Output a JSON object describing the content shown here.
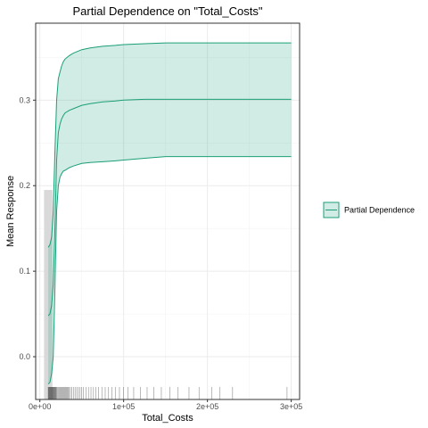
{
  "chart_data": {
    "type": "area",
    "title": "Partial Dependence on \"Total_Costs\"",
    "xlabel": "Total_Costs",
    "ylabel": "Mean Response",
    "xlim": [
      -5000,
      310000
    ],
    "ylim": [
      -0.05,
      0.39
    ],
    "x_ticks": [
      {
        "value": 0,
        "label": "0e+00"
      },
      {
        "value": 100000,
        "label": "1e+05"
      },
      {
        "value": 200000,
        "label": "2e+05"
      },
      {
        "value": 300000,
        "label": "3e+05"
      }
    ],
    "y_ticks": [
      {
        "value": 0.0,
        "label": "0.0"
      },
      {
        "value": 0.1,
        "label": "0.1"
      },
      {
        "value": 0.2,
        "label": "0.2"
      },
      {
        "value": 0.3,
        "label": "0.3"
      }
    ],
    "grid": true,
    "legend_position": "right",
    "series": [
      {
        "name": "Partial Dependence",
        "color": "#1b9e77",
        "fill": "#1b9e77",
        "fill_opacity": 0.2,
        "x": [
          10000,
          12000,
          14000,
          16000,
          18000,
          20000,
          22000,
          24000,
          26000,
          28000,
          30000,
          35000,
          40000,
          50000,
          60000,
          75000,
          90000,
          100000,
          125000,
          150000,
          200000,
          250000,
          300000
        ],
        "mean": [
          0.048,
          0.05,
          0.06,
          0.085,
          0.15,
          0.23,
          0.262,
          0.272,
          0.278,
          0.282,
          0.285,
          0.288,
          0.29,
          0.294,
          0.296,
          0.298,
          0.299,
          0.3,
          0.301,
          0.301,
          0.301,
          0.301,
          0.301
        ],
        "lower": [
          -0.032,
          -0.03,
          -0.02,
          0.0,
          0.08,
          0.17,
          0.2,
          0.21,
          0.214,
          0.217,
          0.218,
          0.221,
          0.223,
          0.226,
          0.227,
          0.228,
          0.229,
          0.23,
          0.232,
          0.234,
          0.234,
          0.234,
          0.234
        ],
        "upper": [
          0.128,
          0.131,
          0.14,
          0.17,
          0.24,
          0.3,
          0.325,
          0.333,
          0.34,
          0.345,
          0.348,
          0.352,
          0.355,
          0.359,
          0.361,
          0.363,
          0.364,
          0.365,
          0.366,
          0.367,
          0.367,
          0.367,
          0.367
        ]
      }
    ],
    "histogram": {
      "color": "#d9d9d9",
      "bins": [
        {
          "x0": 5000,
          "x1": 15000,
          "value": 0.195
        }
      ]
    },
    "rug": {
      "color": "#000000",
      "x": [
        10000,
        10500,
        11000,
        11500,
        12000,
        12500,
        13000,
        13500,
        14000,
        14500,
        15000,
        15500,
        16000,
        16500,
        17000,
        17500,
        18000,
        18500,
        19000,
        19500,
        20000,
        21000,
        22000,
        23000,
        24000,
        25000,
        26000,
        27000,
        28000,
        29000,
        30000,
        31000,
        32000,
        33000,
        34000,
        35000,
        36500,
        38000,
        40000,
        42000,
        44000,
        46000,
        48000,
        50000,
        52000,
        55000,
        58000,
        61000,
        64000,
        67000,
        70000,
        74000,
        78000,
        82000,
        86000,
        90000,
        95000,
        100000,
        105000,
        112000,
        120000,
        128000,
        136000,
        145000,
        155000,
        165000,
        178000,
        190000,
        205000,
        215000,
        230000,
        295000
      ]
    }
  }
}
